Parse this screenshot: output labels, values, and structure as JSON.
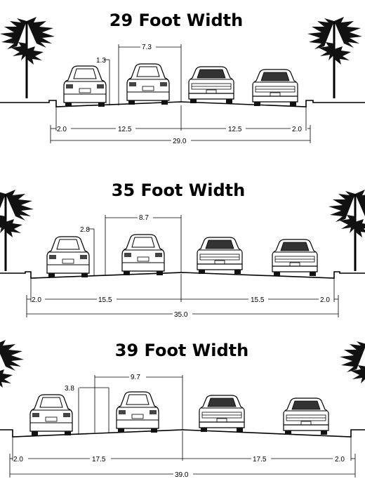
{
  "panels": [
    {
      "title": "29 Foot Width",
      "clearance_left": "1.3",
      "clearance_top": "7.3",
      "shoulder_left": "2.0",
      "lane_left": "12.5",
      "lane_right": "12.5",
      "shoulder_right": "2.0",
      "total": "29.0"
    },
    {
      "title": "35 Foot Width",
      "clearance_left": "2.8",
      "clearance_top": "8.7",
      "shoulder_left": "2.0",
      "lane_left": "15.5",
      "lane_right": "15.5",
      "shoulder_right": "2.0",
      "total": "35.0"
    },
    {
      "title": "39 Foot Width",
      "clearance_left": "3.8",
      "clearance_top": "9.7",
      "shoulder_left": "2.0",
      "lane_left": "17.5",
      "lane_right": "17.5",
      "shoulder_right": "2.0",
      "total": "39.0"
    }
  ]
}
